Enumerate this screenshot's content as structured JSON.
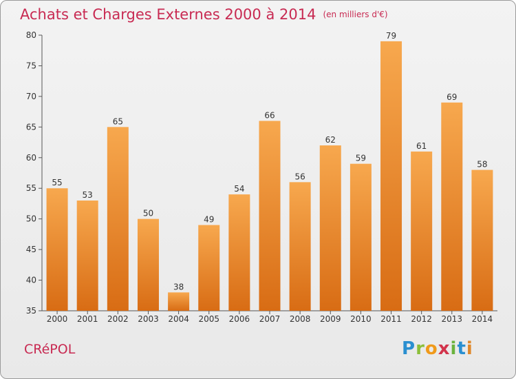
{
  "title": "Achats et Charges Externes 2000 à 2014",
  "unit_label": "(en milliers d'€)",
  "commune": "CRéPOL",
  "logo_letters": [
    "P",
    "r",
    "o",
    "x",
    "i",
    "t",
    "i"
  ],
  "colors": {
    "bar_top": "#f7a84e",
    "bar_bottom": "#d86c14",
    "title": "#c82a52"
  },
  "chart_data": {
    "type": "bar",
    "categories": [
      "2000",
      "2001",
      "2002",
      "2003",
      "2004",
      "2005",
      "2006",
      "2007",
      "2008",
      "2009",
      "2010",
      "2011",
      "2012",
      "2013",
      "2014"
    ],
    "values": [
      55,
      53,
      65,
      50,
      38,
      49,
      54,
      66,
      56,
      62,
      59,
      79,
      61,
      69,
      58
    ],
    "xlabel": "",
    "ylabel": "",
    "ylim": [
      35,
      80
    ],
    "yticks": [
      35,
      40,
      45,
      50,
      55,
      60,
      65,
      70,
      75,
      80
    ],
    "grid": false,
    "data_labels": true
  }
}
